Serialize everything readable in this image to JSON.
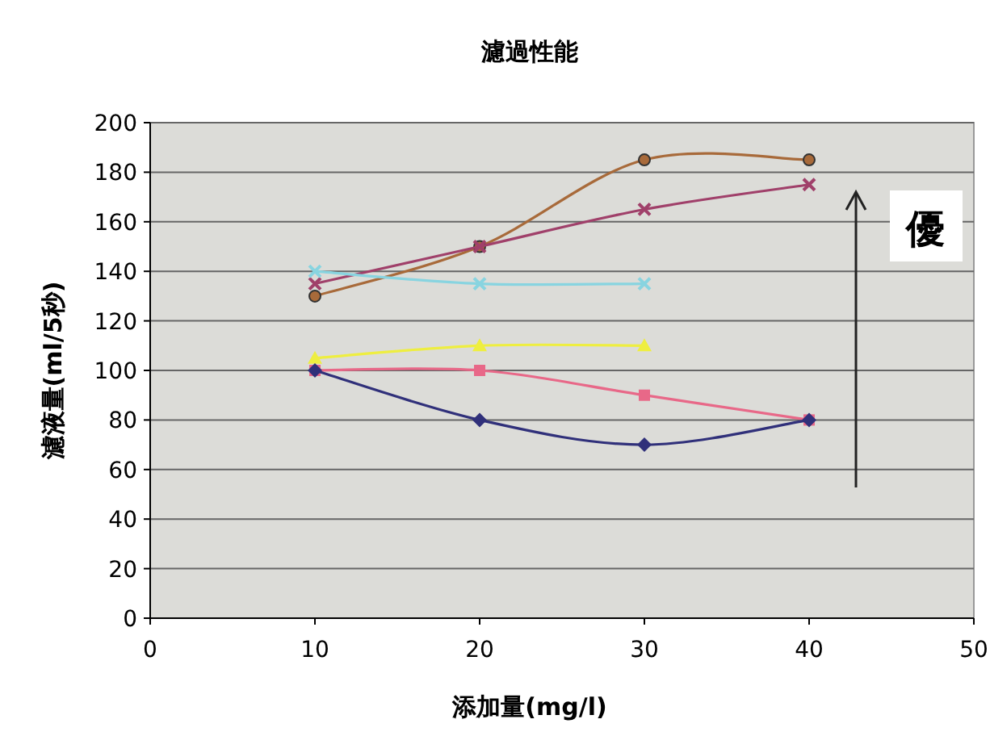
{
  "chart_data": {
    "type": "line",
    "title": "濾過性能",
    "xlabel": "添加量(mg/l)",
    "ylabel": "濾液量(ml/5秒)",
    "x": [
      10,
      20,
      30,
      40
    ],
    "series": [
      {
        "color": "#a86a3a",
        "values": [
          130,
          150,
          185,
          185
        ],
        "marker": "circle"
      },
      {
        "color": "#a0406a",
        "values": [
          135,
          150,
          165,
          175
        ],
        "marker": "cross"
      },
      {
        "color": "#88d4e0",
        "values": [
          140,
          135,
          135,
          null
        ],
        "marker": "cross"
      },
      {
        "color": "#eeee40",
        "values": [
          105,
          110,
          110,
          null
        ],
        "marker": "triangle"
      },
      {
        "color": "#e86888",
        "values": [
          100,
          100,
          90,
          80
        ],
        "marker": "square"
      },
      {
        "color": "#30307a",
        "values": [
          100,
          80,
          70,
          80
        ],
        "marker": "diamond"
      }
    ],
    "xlim": [
      0,
      50
    ],
    "xticks": [
      0,
      10,
      20,
      30,
      40,
      50
    ],
    "ylim": [
      0,
      200
    ],
    "yticks": [
      0,
      20,
      40,
      60,
      80,
      100,
      120,
      140,
      160,
      180,
      200
    ],
    "grid": "y",
    "annotations": [
      "優"
    ]
  }
}
